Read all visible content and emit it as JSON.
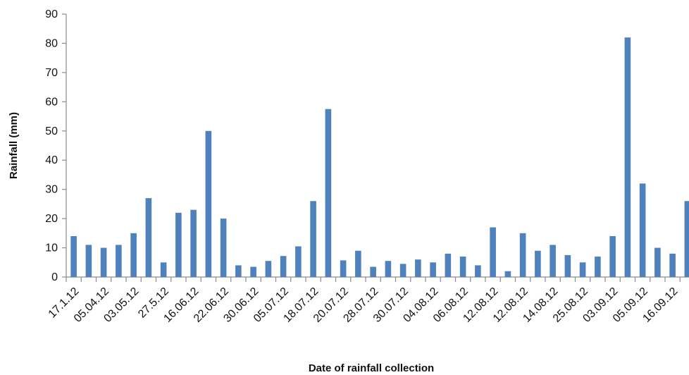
{
  "chart_data": {
    "type": "bar",
    "xlabel": "Date of rainfall collection",
    "ylabel": "Rainfall (mm)",
    "ylim": [
      0,
      90
    ],
    "yticks": [
      0,
      10,
      20,
      30,
      40,
      50,
      60,
      70,
      80,
      90
    ],
    "grid": false,
    "legend": "none",
    "bar_color": "#4F81BD",
    "categories": [
      "17.1.12",
      "",
      "05.04.12",
      "",
      "03.05.12",
      "",
      "27.5.12",
      "",
      "16.06.12",
      "",
      "22.06.12",
      "",
      "30.06.12",
      "",
      "05.07.12",
      "",
      "18.07.12",
      "",
      "20.07.12",
      "",
      "28.07.12",
      "",
      "30.07.12",
      "",
      "04.08.12",
      "",
      "06.08.12",
      "",
      "12.08.12",
      "",
      "12.08.12",
      "",
      "14.08.12",
      "",
      "25.08.12",
      "",
      "03.09.12",
      "",
      "05.09.12",
      "",
      "16.09.12",
      ""
    ],
    "values": [
      14,
      11,
      10,
      11,
      15,
      27,
      5,
      22,
      23,
      50,
      20,
      4,
      3.5,
      5.5,
      7.2,
      10.5,
      26,
      57.5,
      5.7,
      9,
      3.5,
      5.5,
      4.5,
      6,
      5,
      8,
      7,
      4,
      17,
      2,
      15,
      9,
      11,
      7.5,
      5,
      7,
      14,
      82,
      32,
      10,
      8,
      26
    ]
  }
}
